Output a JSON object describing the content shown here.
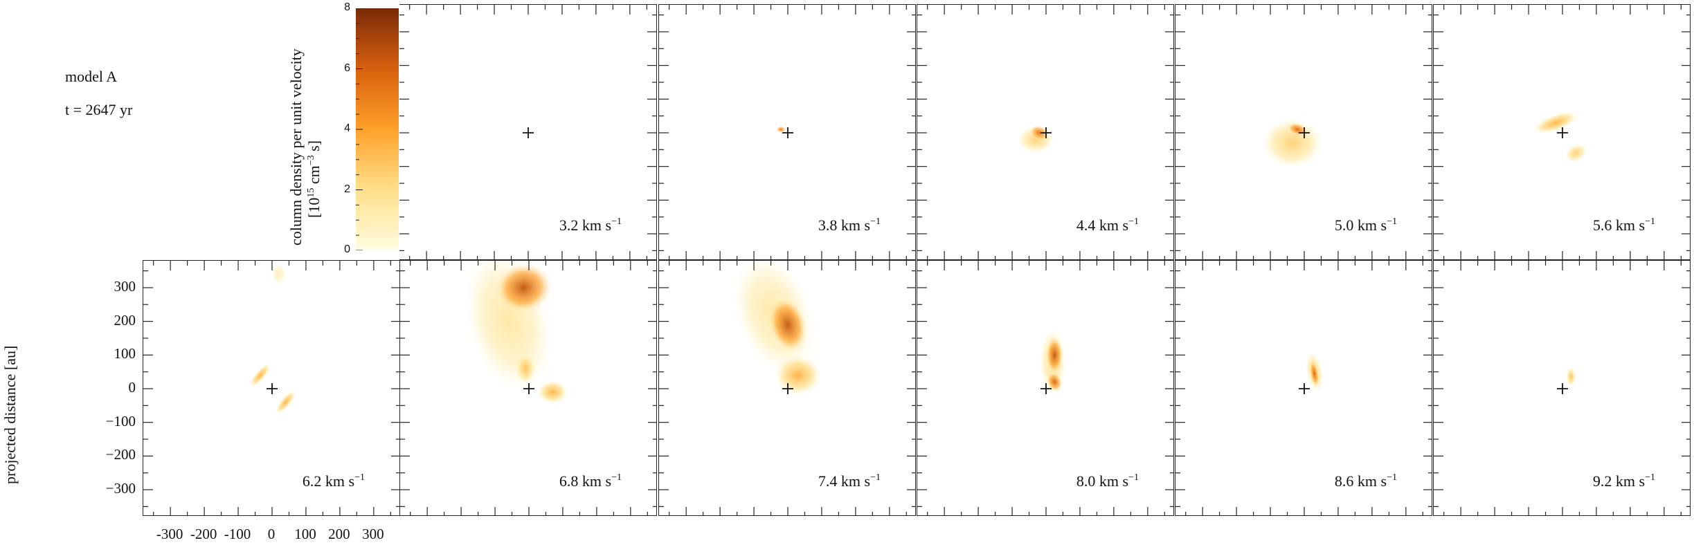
{
  "figure": {
    "model_label": "model A",
    "time_label": "t = 2647 yr",
    "ylabel": "projected distance [au]"
  },
  "colorbar": {
    "label_line1": "column density per unit velocity",
    "label_line2_pre": "[10",
    "label_line2_exp1": "15",
    "label_line2_mid": " cm",
    "label_line2_exp2": "−3",
    "label_line2_post": " s]",
    "ticks": [
      "0",
      "2",
      "4",
      "6",
      "8"
    ],
    "range": [
      0,
      8
    ],
    "colors": [
      "#fffce0",
      "#ffe08a",
      "#ffa12a",
      "#d8600e",
      "#7a2a08"
    ]
  },
  "unit": {
    "text": " km s",
    "exp": "−1"
  },
  "chart_data": {
    "type": "heatmap",
    "description_type": "channel map grid",
    "xlabel": "",
    "ylabel": "projected distance [au]",
    "xlim": [
      -380,
      380
    ],
    "ylim": [
      -380,
      380
    ],
    "x_ticks": [
      "-300",
      "-200",
      "-100",
      "0",
      "100",
      "200",
      "300"
    ],
    "y_ticks": [
      "300",
      "200",
      "100",
      "0",
      "−100",
      "−200",
      "−300"
    ],
    "colorbar_range": [
      0,
      8
    ],
    "panels": [
      {
        "velocity": "3.2",
        "blobs": []
      },
      {
        "velocity": "3.8",
        "blobs": [
          {
            "x": -20,
            "y": 10,
            "rx": 14,
            "ry": 10,
            "level": 5.5,
            "rot": 0
          }
        ]
      },
      {
        "velocity": "4.4",
        "blobs": [
          {
            "x": -30,
            "y": -20,
            "rx": 55,
            "ry": 40,
            "level": 2.5,
            "rot": 0
          },
          {
            "x": -20,
            "y": 0,
            "rx": 30,
            "ry": 22,
            "level": 5.5,
            "rot": -20
          }
        ]
      },
      {
        "velocity": "5.0",
        "blobs": [
          {
            "x": -35,
            "y": -30,
            "rx": 90,
            "ry": 75,
            "level": 2.5,
            "rot": 0
          },
          {
            "x": -20,
            "y": 10,
            "rx": 30,
            "ry": 18,
            "level": 6,
            "rot": -20
          }
        ]
      },
      {
        "velocity": "5.6",
        "blobs": [
          {
            "x": -20,
            "y": 30,
            "rx": 70,
            "ry": 25,
            "level": 3.5,
            "rot": 20
          },
          {
            "x": 40,
            "y": -60,
            "rx": 35,
            "ry": 25,
            "level": 2.5,
            "rot": 30
          }
        ]
      },
      {
        "velocity": "6.2",
        "blobs": [
          {
            "x": -35,
            "y": 40,
            "rx": 45,
            "ry": 15,
            "level": 3.5,
            "rot": 50
          },
          {
            "x": 40,
            "y": -40,
            "rx": 45,
            "ry": 15,
            "level": 3.5,
            "rot": 50
          },
          {
            "x": 20,
            "y": 340,
            "rx": 20,
            "ry": 30,
            "level": 1,
            "rot": 0
          }
        ]
      },
      {
        "velocity": "6.8",
        "blobs": [
          {
            "x": -60,
            "y": 200,
            "rx": 120,
            "ry": 210,
            "level": 1.5,
            "rot": 15
          },
          {
            "x": -15,
            "y": 300,
            "rx": 85,
            "ry": 75,
            "level": 6.5,
            "rot": 10
          },
          {
            "x": -10,
            "y": 60,
            "rx": 30,
            "ry": 45,
            "level": 3,
            "rot": 0
          },
          {
            "x": 70,
            "y": -10,
            "rx": 45,
            "ry": 35,
            "level": 3.5,
            "rot": 0
          }
        ]
      },
      {
        "velocity": "7.4",
        "blobs": [
          {
            "x": -40,
            "y": 220,
            "rx": 110,
            "ry": 180,
            "level": 1.5,
            "rot": 20
          },
          {
            "x": 0,
            "y": 190,
            "rx": 55,
            "ry": 85,
            "level": 6.5,
            "rot": 15
          },
          {
            "x": 30,
            "y": 40,
            "rx": 70,
            "ry": 60,
            "level": 3.5,
            "rot": 0
          }
        ]
      },
      {
        "velocity": "8.0",
        "blobs": [
          {
            "x": 20,
            "y": 80,
            "rx": 40,
            "ry": 100,
            "level": 2,
            "rot": 0
          },
          {
            "x": 25,
            "y": 100,
            "rx": 25,
            "ry": 55,
            "level": 6.5,
            "rot": 0
          },
          {
            "x": 25,
            "y": 20,
            "rx": 22,
            "ry": 30,
            "level": 6,
            "rot": 20
          }
        ]
      },
      {
        "velocity": "8.6",
        "blobs": [
          {
            "x": 30,
            "y": 50,
            "rx": 25,
            "ry": 60,
            "level": 2.5,
            "rot": 10
          },
          {
            "x": 30,
            "y": 45,
            "rx": 12,
            "ry": 40,
            "level": 6,
            "rot": 10
          }
        ]
      },
      {
        "velocity": "9.2",
        "blobs": [
          {
            "x": 25,
            "y": 35,
            "rx": 14,
            "ry": 30,
            "level": 3,
            "rot": 0
          }
        ]
      }
    ]
  }
}
